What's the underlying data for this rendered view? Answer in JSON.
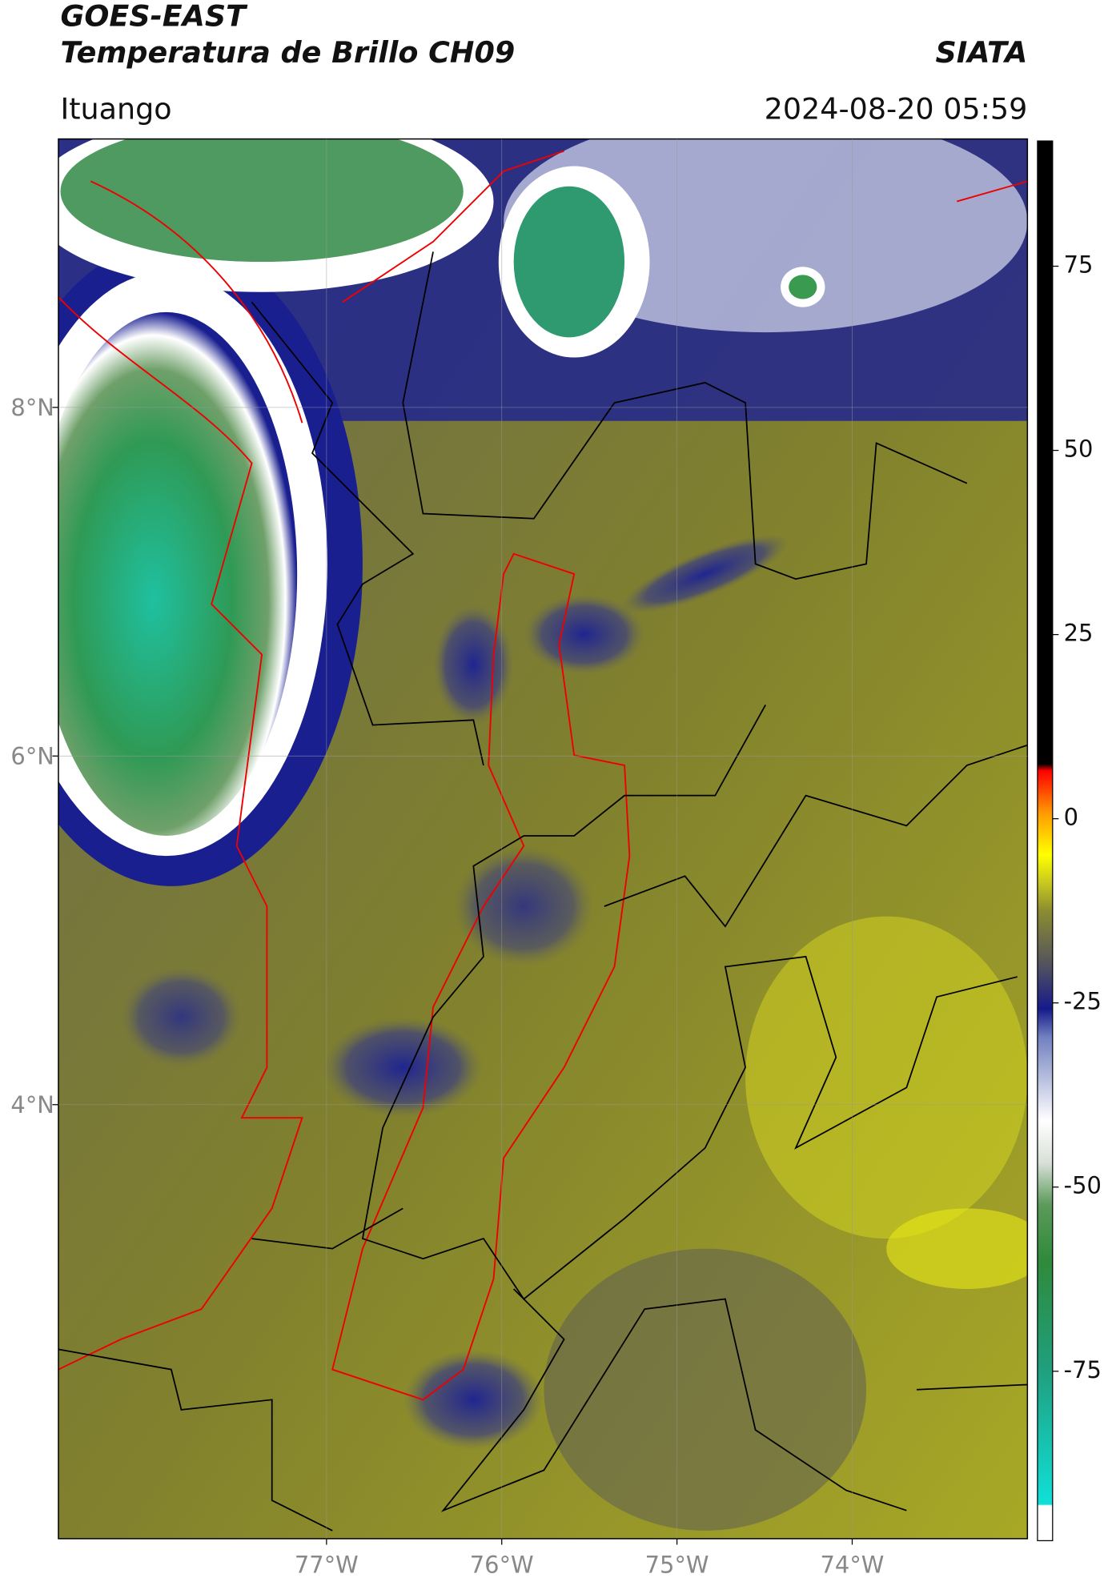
{
  "header": {
    "title": "GOES-EAST",
    "subtitle": "Temperatura de Brillo CH09",
    "brand": "SIATA",
    "location": "Ituango",
    "datetime": "2024-08-20 05:59"
  },
  "map": {
    "xlim": [
      -78.53,
      -73.0
    ],
    "ylim": [
      1.51,
      9.54
    ],
    "xticks": [
      {
        "value": -77,
        "label": "77°W"
      },
      {
        "value": -76,
        "label": "76°W"
      },
      {
        "value": -75,
        "label": "75°W"
      },
      {
        "value": -74,
        "label": "74°W"
      }
    ],
    "yticks": [
      {
        "value": 4,
        "label": "4°N"
      },
      {
        "value": 6,
        "label": "6°N"
      },
      {
        "value": 8,
        "label": "8°N"
      }
    ],
    "grid": true
  },
  "colorbar": {
    "clim": [
      -98,
      92
    ],
    "ticks": [
      -75,
      -50,
      -25,
      0,
      25,
      50,
      75
    ]
  }
}
